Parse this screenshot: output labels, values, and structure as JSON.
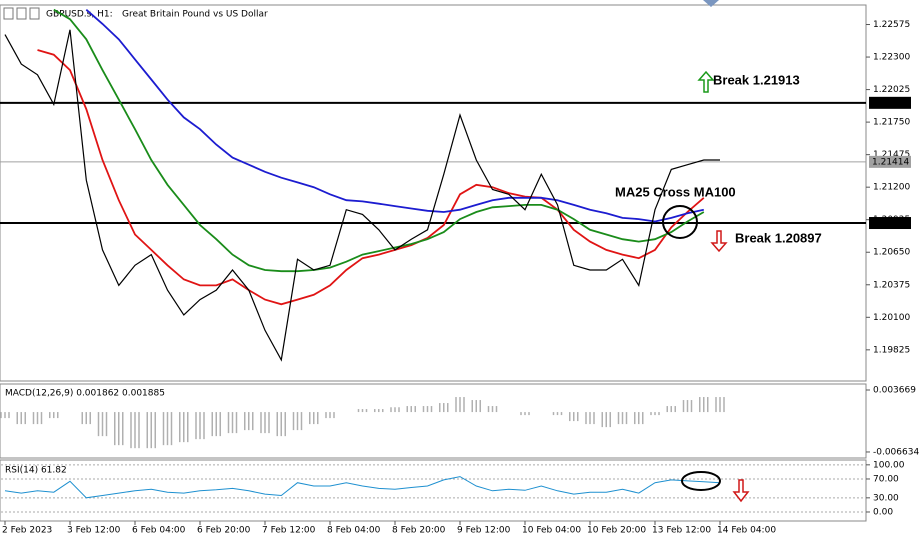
{
  "header": {
    "symbol": "GBPUSD.s, H1:",
    "description": "Great Britain Pound vs US Dollar"
  },
  "chart_data": [
    {
      "type": "line",
      "categories": [
        "2 Feb 2023",
        null,
        null,
        null,
        "3 Feb 12:00",
        null,
        null,
        null,
        "6 Feb 04:00",
        null,
        null,
        null,
        "6 Feb 20:00",
        null,
        null,
        null,
        "7 Feb 12:00",
        null,
        null,
        null,
        "8 Feb 04:00",
        null,
        null,
        null,
        "8 Feb 20:00",
        null,
        null,
        null,
        "9 Feb 12:00",
        null,
        null,
        null,
        "10 Feb 04:00",
        null,
        null,
        null,
        "10 Feb 20:00",
        null,
        null,
        null,
        "13 Feb 12:00",
        null,
        null,
        null,
        "14 Feb 04:00"
      ],
      "series": [
        {
          "color": "#000000",
          "values": [
            1.2249,
            1.2224,
            1.2215,
            1.219,
            1.2253,
            1.2126,
            1.2067,
            1.2037,
            1.2054,
            1.2063,
            1.2033,
            1.2012,
            1.2025,
            1.2033,
            1.205,
            1.2033,
            1.1999,
            1.1974,
            1.2059,
            1.205,
            1.2054,
            1.2101,
            1.2097,
            1.2084,
            1.2067,
            1.2076,
            1.2084,
            1.2131,
            1.2181,
            1.2143,
            1.2118,
            1.2114,
            1.2101,
            1.2131,
            1.2105,
            1.2054,
            1.205,
            1.205,
            1.2059,
            1.2037,
            1.2101,
            1.2135,
            1.2139,
            1.2143,
            1.2143
          ]
        },
        {
          "color": "#1c1cd0",
          "values": [
            null,
            null,
            null,
            null,
            null,
            1.227,
            1.2258,
            1.2245,
            1.2228,
            1.2211,
            1.2194,
            1.2179,
            1.2169,
            1.2156,
            1.2145,
            1.2139,
            1.2133,
            1.2128,
            1.2124,
            1.212,
            1.2114,
            1.2109,
            1.2108,
            1.2106,
            1.2104,
            1.2102,
            1.21,
            1.2099,
            1.2101,
            1.2105,
            1.2109,
            1.2111,
            1.2111,
            1.2111,
            1.2109,
            1.2105,
            1.2101,
            1.2098,
            1.2094,
            1.2093,
            1.2091,
            1.2094,
            1.2098,
            1.2101,
            null
          ]
        },
        {
          "color": "#1a8c1a",
          "values": [
            null,
            null,
            null,
            1.227,
            1.2262,
            1.2245,
            1.2219,
            1.2194,
            1.2169,
            1.2143,
            1.2122,
            1.2105,
            1.2088,
            1.2076,
            1.2063,
            1.2054,
            1.205,
            1.2049,
            1.2049,
            1.205,
            1.2052,
            1.2057,
            1.2063,
            1.2066,
            1.2069,
            1.2072,
            1.2076,
            1.2082,
            1.2093,
            1.2099,
            1.2103,
            1.2104,
            1.2105,
            1.2105,
            1.2101,
            1.2093,
            1.2084,
            1.208,
            1.2076,
            1.2074,
            1.2076,
            1.2082,
            1.2091,
            1.2099,
            null
          ]
        },
        {
          "color": "#e01414",
          "values": [
            null,
            null,
            1.2236,
            1.2232,
            1.2219,
            1.2186,
            1.2143,
            1.2109,
            1.208,
            1.2067,
            1.2054,
            1.2042,
            1.2037,
            1.2037,
            1.2042,
            1.2033,
            1.2025,
            1.2021,
            1.2025,
            1.2029,
            1.2037,
            1.205,
            1.206,
            1.2063,
            1.2067,
            1.2071,
            1.2077,
            1.2088,
            1.2114,
            1.2122,
            1.212,
            1.2115,
            1.2112,
            1.2111,
            1.2101,
            1.2084,
            1.2074,
            1.2067,
            1.2063,
            1.206,
            1.2067,
            1.2086,
            1.2099,
            1.2111,
            null
          ]
        }
      ],
      "ylim": [
        1.1957,
        1.2274
      ],
      "yticks": [
        1.22575,
        {
          "value": 1.223,
          "label": "1.22300"
        },
        1.22025,
        {
          "value": 1.2175,
          "label": "1.21750"
        },
        1.21475,
        {
          "value": 1.212,
          "label": "1.21200"
        },
        1.20925,
        {
          "value": 1.2065,
          "label": "1.20650"
        },
        1.20375,
        {
          "value": 1.201,
          "label": "1.20100"
        },
        1.19825
      ],
      "levels": [
        {
          "value": 1.21913,
          "color": "#000000"
        },
        {
          "value": 1.21414,
          "color": "#a0a0a0"
        },
        {
          "value": 1.20897,
          "color": "#000000"
        }
      ],
      "annotations": [
        "Break 1.21913",
        "MA25 Cross MA100",
        "Break 1.20897"
      ]
    },
    {
      "type": "bar",
      "title": "MACD(12,26,9) 0.001862 0.001885",
      "color": "#b0b0b0",
      "values": [
        -0.001,
        -0.002,
        -0.002,
        -0.001,
        0.0,
        -0.002,
        -0.004,
        -0.0055,
        -0.006,
        -0.006,
        -0.0055,
        -0.005,
        -0.0045,
        -0.004,
        -0.0035,
        -0.003,
        -0.0035,
        -0.004,
        -0.003,
        -0.002,
        -0.001,
        0.0,
        0.0005,
        0.0005,
        0.0008,
        0.001,
        0.001,
        0.0015,
        0.0025,
        0.002,
        0.001,
        0.0,
        -0.0005,
        0.0,
        -0.0005,
        -0.0015,
        -0.002,
        -0.0025,
        -0.002,
        -0.002,
        -0.0005,
        0.001,
        0.002,
        0.0025,
        0.0025
      ],
      "ylim": [
        -0.00747,
        0.0045
      ],
      "yticks": [
        0.003669,
        -0.006634
      ]
    },
    {
      "type": "line",
      "title": "RSI(14) 61.82",
      "color": "#1e90d0",
      "values": [
        45,
        40,
        45,
        42,
        65,
        30,
        35,
        40,
        45,
        48,
        42,
        40,
        45,
        47,
        50,
        45,
        38,
        35,
        62,
        55,
        55,
        62,
        55,
        50,
        48,
        52,
        55,
        68,
        75,
        55,
        45,
        48,
        46,
        55,
        45,
        38,
        42,
        42,
        48,
        40,
        62,
        68,
        66,
        64,
        62
      ],
      "ylim": [
        -17,
        106
      ],
      "yticks": [
        {
          "value": 100,
          "label": "100.00"
        },
        {
          "value": 70,
          "label": "70.00"
        },
        {
          "value": 30,
          "label": "30.00"
        },
        {
          "value": 0,
          "label": "0.00"
        }
      ],
      "grid": true
    }
  ]
}
